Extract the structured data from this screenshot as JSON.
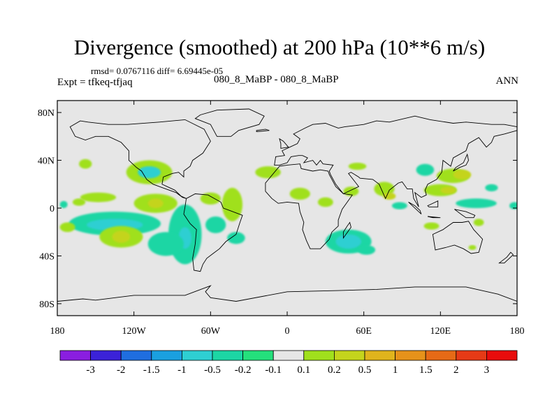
{
  "title": "Divergence (smoothed) at 200 hPa (10**6 m/s)",
  "stats_line": "rmsd= 0.0767116  diff= 6.69445e-05",
  "left_label": "Expt = tfkeq-tfjaq",
  "center_label": "080_8_MaBP - 080_8_MaBP",
  "right_label": "ANN",
  "map": {
    "lon_range": [
      -180,
      180
    ],
    "lat_range": [
      -90,
      90
    ],
    "background_color": "#e6e6e6",
    "lat_ticks": [
      {
        "lat": 80,
        "label": "80N"
      },
      {
        "lat": 40,
        "label": "40N"
      },
      {
        "lat": 0,
        "label": "0"
      },
      {
        "lat": -40,
        "label": "40S"
      },
      {
        "lat": -80,
        "label": "80S"
      }
    ],
    "lon_ticks": [
      {
        "lon": -180,
        "label": "180"
      },
      {
        "lon": -120,
        "label": "120W"
      },
      {
        "lon": -60,
        "label": "60W"
      },
      {
        "lon": 0,
        "label": "0"
      },
      {
        "lon": 60,
        "label": "60E"
      },
      {
        "lon": 120,
        "label": "120E"
      },
      {
        "lon": 180,
        "label": "180"
      }
    ],
    "anomalies": [
      {
        "lon": -158,
        "lat": 37,
        "rlon": 5,
        "rlat": 4,
        "level": 0.2
      },
      {
        "lon": -148,
        "lat": 9,
        "rlon": 14,
        "rlat": 4,
        "level": 0.2
      },
      {
        "lon": -108,
        "lat": 30,
        "rlon": 18,
        "rlat": 10,
        "level": 0.2
      },
      {
        "lon": -108,
        "lat": 30,
        "rlon": 9,
        "rlat": 5,
        "level": -0.5
      },
      {
        "lon": -103,
        "lat": 4,
        "rlon": 17,
        "rlat": 8,
        "level": 0.2
      },
      {
        "lon": -103,
        "lat": 4,
        "rlon": 6,
        "rlat": 4,
        "level": 0.5
      },
      {
        "lon": -135,
        "lat": -13,
        "rlon": 36,
        "rlat": 10,
        "level": -0.2
      },
      {
        "lon": -135,
        "lat": -14,
        "rlon": 22,
        "rlat": 5,
        "level": -0.5
      },
      {
        "lon": -130,
        "lat": -24,
        "rlon": 17,
        "rlat": 9,
        "level": 0.2
      },
      {
        "lon": -130,
        "lat": -24,
        "rlon": 7,
        "rlat": 5,
        "level": 0.5
      },
      {
        "lon": -172,
        "lat": -16,
        "rlon": 6,
        "rlat": 4,
        "level": 0.2
      },
      {
        "lon": -80,
        "lat": -22,
        "rlon": 13,
        "rlat": 25,
        "level": -0.2
      },
      {
        "lon": -80,
        "lat": -25,
        "rlon": 5,
        "rlat": 9,
        "level": -0.5
      },
      {
        "lon": -95,
        "lat": -30,
        "rlon": 14,
        "rlat": 10,
        "level": -0.2
      },
      {
        "lon": -43,
        "lat": 3,
        "rlon": 8,
        "rlat": 14,
        "level": 0.2
      },
      {
        "lon": -56,
        "lat": -14,
        "rlon": 8,
        "rlat": 7,
        "level": -0.2
      },
      {
        "lon": -40,
        "lat": -25,
        "rlon": 7,
        "rlat": 5,
        "level": -0.2
      },
      {
        "lon": -15,
        "lat": 30,
        "rlon": 10,
        "rlat": 5,
        "level": 0.2
      },
      {
        "lon": -60,
        "lat": 8,
        "rlon": 8,
        "rlat": 5,
        "level": 0.2
      },
      {
        "lon": 10,
        "lat": 12,
        "rlon": 8,
        "rlat": 5,
        "level": 0.2
      },
      {
        "lon": 30,
        "lat": 5,
        "rlon": 6,
        "rlat": 4,
        "level": 0.2
      },
      {
        "lon": 50,
        "lat": 14,
        "rlon": 6,
        "rlat": 4,
        "level": 0.2
      },
      {
        "lon": 55,
        "lat": 35,
        "rlon": 7,
        "rlat": 3,
        "level": 0.2
      },
      {
        "lon": 48,
        "lat": -28,
        "rlon": 18,
        "rlat": 10,
        "level": -0.2
      },
      {
        "lon": 48,
        "lat": -28,
        "rlon": 10,
        "rlat": 6,
        "level": -0.5
      },
      {
        "lon": 62,
        "lat": -35,
        "rlon": 7,
        "rlat": 4,
        "level": -0.2
      },
      {
        "lon": 76,
        "lat": 16,
        "rlon": 8,
        "rlat": 6,
        "level": 0.2
      },
      {
        "lon": 80,
        "lat": 10,
        "rlon": 5,
        "rlat": 3,
        "level": 0.5
      },
      {
        "lon": 88,
        "lat": 2,
        "rlon": 6,
        "rlat": 3,
        "level": -0.2
      },
      {
        "lon": 108,
        "lat": 32,
        "rlon": 7,
        "rlat": 5,
        "level": -0.2
      },
      {
        "lon": 120,
        "lat": 15,
        "rlon": 13,
        "rlat": 5,
        "level": 0.2
      },
      {
        "lon": 126,
        "lat": 15,
        "rlon": 6,
        "rlat": 3,
        "level": 0.5
      },
      {
        "lon": 130,
        "lat": 27,
        "rlon": 13,
        "rlat": 6,
        "level": 0.2
      },
      {
        "lon": 137,
        "lat": 28,
        "rlon": 7,
        "rlat": 4,
        "level": 0.5
      },
      {
        "lon": 113,
        "lat": -15,
        "rlon": 6,
        "rlat": 3,
        "level": 0.2
      },
      {
        "lon": 148,
        "lat": 4,
        "rlon": 16,
        "rlat": 4,
        "level": -0.2
      },
      {
        "lon": 160,
        "lat": 17,
        "rlon": 5,
        "rlat": 3,
        "level": -0.2
      },
      {
        "lon": 145,
        "lat": -33,
        "rlon": 3,
        "rlat": 2,
        "level": 0.2
      },
      {
        "lon": 150,
        "lat": -12,
        "rlon": 4,
        "rlat": 3,
        "level": 0.2
      },
      {
        "lon": 178,
        "lat": 2,
        "rlon": 4,
        "rlat": 3,
        "level": -0.2
      },
      {
        "lon": -175,
        "lat": 3,
        "rlon": 3,
        "rlat": 3,
        "level": -0.2
      },
      {
        "lon": -163,
        "lat": 5,
        "rlon": 5,
        "rlat": 3,
        "level": 0.2
      }
    ],
    "continents": [
      [
        [
          -170,
          68
        ],
        [
          -162,
          73
        ],
        [
          -156,
          72
        ],
        [
          -140,
          70
        ],
        [
          -125,
          70
        ],
        [
          -100,
          72
        ],
        [
          -80,
          74
        ],
        [
          -65,
          66
        ],
        [
          -60,
          56
        ],
        [
          -66,
          46
        ],
        [
          -74,
          40
        ],
        [
          -76,
          35
        ],
        [
          -81,
          31
        ],
        [
          -81,
          26
        ],
        [
          -85,
          30
        ],
        [
          -90,
          29
        ],
        [
          -97,
          26
        ],
        [
          -98,
          20
        ],
        [
          -94,
          18
        ],
        [
          -88,
          15
        ],
        [
          -83,
          10
        ],
        [
          -79,
          8
        ],
        [
          -82,
          9
        ],
        [
          -87,
          13
        ],
        [
          -95,
          16
        ],
        [
          -105,
          20
        ],
        [
          -110,
          24
        ],
        [
          -114,
          31
        ],
        [
          -118,
          34
        ],
        [
          -124,
          40
        ],
        [
          -124,
          48
        ],
        [
          -130,
          55
        ],
        [
          -140,
          60
        ],
        [
          -150,
          60
        ],
        [
          -158,
          57
        ],
        [
          -166,
          60
        ],
        [
          -170,
          68
        ]
      ],
      [
        [
          -79,
          8
        ],
        [
          -72,
          12
        ],
        [
          -62,
          11
        ],
        [
          -52,
          5
        ],
        [
          -50,
          0
        ],
        [
          -45,
          -2
        ],
        [
          -35,
          -6
        ],
        [
          -37,
          -12
        ],
        [
          -40,
          -22
        ],
        [
          -48,
          -28
        ],
        [
          -53,
          -34
        ],
        [
          -58,
          -38
        ],
        [
          -63,
          -42
        ],
        [
          -66,
          -47
        ],
        [
          -68,
          -53
        ],
        [
          -73,
          -52
        ],
        [
          -74,
          -42
        ],
        [
          -72,
          -30
        ],
        [
          -71,
          -18
        ],
        [
          -76,
          -13
        ],
        [
          -81,
          -5
        ],
        [
          -80,
          1
        ],
        [
          -79,
          8
        ]
      ],
      [
        [
          -55,
          60
        ],
        [
          -44,
          60
        ],
        [
          -38,
          65
        ],
        [
          -22,
          70
        ],
        [
          -18,
          77
        ],
        [
          -30,
          83
        ],
        [
          -55,
          82
        ],
        [
          -68,
          78
        ],
        [
          -72,
          75
        ],
        [
          -60,
          70
        ],
        [
          -55,
          60
        ]
      ],
      [
        [
          -10,
          36
        ],
        [
          -9,
          43
        ],
        [
          -2,
          44
        ],
        [
          -4,
          48
        ],
        [
          2,
          51
        ],
        [
          8,
          54
        ],
        [
          10,
          58
        ],
        [
          5,
          62
        ],
        [
          14,
          67
        ],
        [
          20,
          70
        ],
        [
          30,
          71
        ],
        [
          40,
          67
        ],
        [
          45,
          68
        ],
        [
          60,
          70
        ],
        [
          70,
          73
        ],
        [
          80,
          72
        ],
        [
          100,
          77
        ],
        [
          112,
          74
        ],
        [
          130,
          71
        ],
        [
          140,
          72
        ],
        [
          160,
          70
        ],
        [
          170,
          70
        ],
        [
          180,
          68
        ],
        [
          180,
          65
        ],
        [
          170,
          62
        ],
        [
          162,
          60
        ],
        [
          160,
          55
        ],
        [
          156,
          51
        ],
        [
          150,
          59
        ],
        [
          142,
          54
        ],
        [
          140,
          48
        ],
        [
          130,
          42
        ],
        [
          128,
          35
        ],
        [
          122,
          40
        ],
        [
          121,
          30
        ],
        [
          117,
          24
        ],
        [
          110,
          20
        ],
        [
          108,
          15
        ],
        [
          109,
          11
        ],
        [
          105,
          9
        ],
        [
          100,
          13
        ],
        [
          103,
          1
        ],
        [
          99,
          8
        ],
        [
          98,
          16
        ],
        [
          94,
          16
        ],
        [
          90,
          22
        ],
        [
          87,
          21
        ],
        [
          80,
          15
        ],
        [
          77,
          8
        ],
        [
          72,
          20
        ],
        [
          67,
          24
        ],
        [
          57,
          25
        ],
        [
          56,
          26
        ],
        [
          50,
          30
        ],
        [
          48,
          29
        ],
        [
          56,
          18
        ],
        [
          52,
          16
        ],
        [
          44,
          12
        ],
        [
          38,
          20
        ],
        [
          34,
          28
        ],
        [
          33,
          31
        ],
        [
          36,
          36
        ],
        [
          28,
          37
        ],
        [
          26,
          40
        ],
        [
          23,
          36
        ],
        [
          20,
          40
        ],
        [
          13,
          38
        ],
        [
          16,
          42
        ],
        [
          12,
          44
        ],
        [
          9,
          44
        ],
        [
          3,
          43
        ],
        [
          0,
          38
        ],
        [
          -6,
          36
        ],
        [
          -10,
          36
        ]
      ],
      [
        [
          -17,
          21
        ],
        [
          -17,
          14
        ],
        [
          -12,
          8
        ],
        [
          -7,
          4
        ],
        [
          0,
          5
        ],
        [
          9,
          4
        ],
        [
          10,
          -3
        ],
        [
          13,
          -12
        ],
        [
          12,
          -18
        ],
        [
          15,
          -27
        ],
        [
          18,
          -34
        ],
        [
          26,
          -34
        ],
        [
          33,
          -26
        ],
        [
          35,
          -20
        ],
        [
          40,
          -15
        ],
        [
          40,
          -10
        ],
        [
          43,
          -1
        ],
        [
          51,
          11
        ],
        [
          44,
          12
        ],
        [
          38,
          18
        ],
        [
          33,
          28
        ],
        [
          32,
          31
        ],
        [
          26,
          32
        ],
        [
          20,
          31
        ],
        [
          11,
          33
        ],
        [
          10,
          37
        ],
        [
          0,
          36
        ],
        [
          -6,
          35
        ],
        [
          -10,
          30
        ],
        [
          -17,
          21
        ]
      ],
      [
        [
          44,
          -25
        ],
        [
          50,
          -16
        ],
        [
          49,
          -12
        ],
        [
          47,
          -15
        ],
        [
          44,
          -20
        ],
        [
          44,
          -25
        ]
      ],
      [
        [
          114,
          -22
        ],
        [
          122,
          -18
        ],
        [
          130,
          -12
        ],
        [
          137,
          -12
        ],
        [
          142,
          -11
        ],
        [
          146,
          -18
        ],
        [
          153,
          -26
        ],
        [
          150,
          -37
        ],
        [
          144,
          -38
        ],
        [
          138,
          -34
        ],
        [
          131,
          -31
        ],
        [
          124,
          -33
        ],
        [
          116,
          -35
        ],
        [
          114,
          -22
        ]
      ],
      [
        [
          95,
          5
        ],
        [
          105,
          -5
        ],
        [
          104,
          -2
        ],
        [
          100,
          2
        ],
        [
          95,
          5
        ]
      ],
      [
        [
          110,
          -7
        ],
        [
          120,
          -8
        ],
        [
          114,
          -8
        ],
        [
          110,
          -7
        ]
      ],
      [
        [
          110,
          2
        ],
        [
          118,
          6
        ],
        [
          118,
          1
        ],
        [
          111,
          1
        ],
        [
          110,
          2
        ]
      ],
      [
        [
          131,
          -1
        ],
        [
          140,
          -3
        ],
        [
          147,
          -6
        ],
        [
          146,
          -8
        ],
        [
          140,
          -8
        ],
        [
          136,
          -5
        ],
        [
          131,
          -1
        ]
      ],
      [
        [
          130,
          31
        ],
        [
          135,
          34
        ],
        [
          140,
          36
        ],
        [
          142,
          40
        ],
        [
          141,
          45
        ],
        [
          138,
          38
        ],
        [
          132,
          34
        ],
        [
          130,
          31
        ]
      ],
      [
        [
          166,
          -46
        ],
        [
          172,
          -41
        ],
        [
          175,
          -37
        ],
        [
          177,
          -39
        ],
        [
          170,
          -46
        ],
        [
          166,
          -46
        ]
      ],
      [
        [
          -5,
          50
        ],
        [
          1,
          51
        ],
        [
          -3,
          56
        ],
        [
          -6,
          58
        ],
        [
          -5,
          54
        ],
        [
          -5,
          50
        ]
      ],
      [
        [
          -24,
          64
        ],
        [
          -14,
          65
        ],
        [
          -17,
          66
        ],
        [
          -24,
          65
        ],
        [
          -24,
          64
        ]
      ],
      [
        [
          -180,
          -78
        ],
        [
          -160,
          -76
        ],
        [
          -150,
          -77
        ],
        [
          -120,
          -73
        ],
        [
          -80,
          -73
        ],
        [
          -60,
          -65
        ],
        [
          -64,
          -70
        ],
        [
          -60,
          -75
        ],
        [
          -40,
          -78
        ],
        [
          0,
          -70
        ],
        [
          40,
          -69
        ],
        [
          70,
          -68
        ],
        [
          100,
          -66
        ],
        [
          140,
          -66
        ],
        [
          165,
          -72
        ],
        [
          180,
          -78
        ],
        [
          180,
          -90
        ],
        [
          -180,
          -90
        ],
        [
          -180,
          -78
        ]
      ]
    ]
  },
  "colorbar": {
    "labels": [
      "-3",
      "-2",
      "-1.5",
      "-1",
      "-0.5",
      "-0.2",
      "-0.1",
      "0.1",
      "0.2",
      "0.5",
      "1",
      "1.5",
      "2",
      "3"
    ],
    "colors": [
      "#8a1ee0",
      "#3b22d8",
      "#1f6ee0",
      "#1aa0e0",
      "#2ecfd2",
      "#1cd6a4",
      "#24e07c",
      "#e6e6e6",
      "#a0e01c",
      "#c4d41c",
      "#e0b41c",
      "#e6921a",
      "#e66a16",
      "#e63a16",
      "#e80c0c"
    ],
    "level_color": {
      "-0.5": "#2ecfd2",
      "-0.2": "#1cd6a4",
      "0.2": "#a0e01c",
      "0.5": "#c4d41c"
    }
  }
}
